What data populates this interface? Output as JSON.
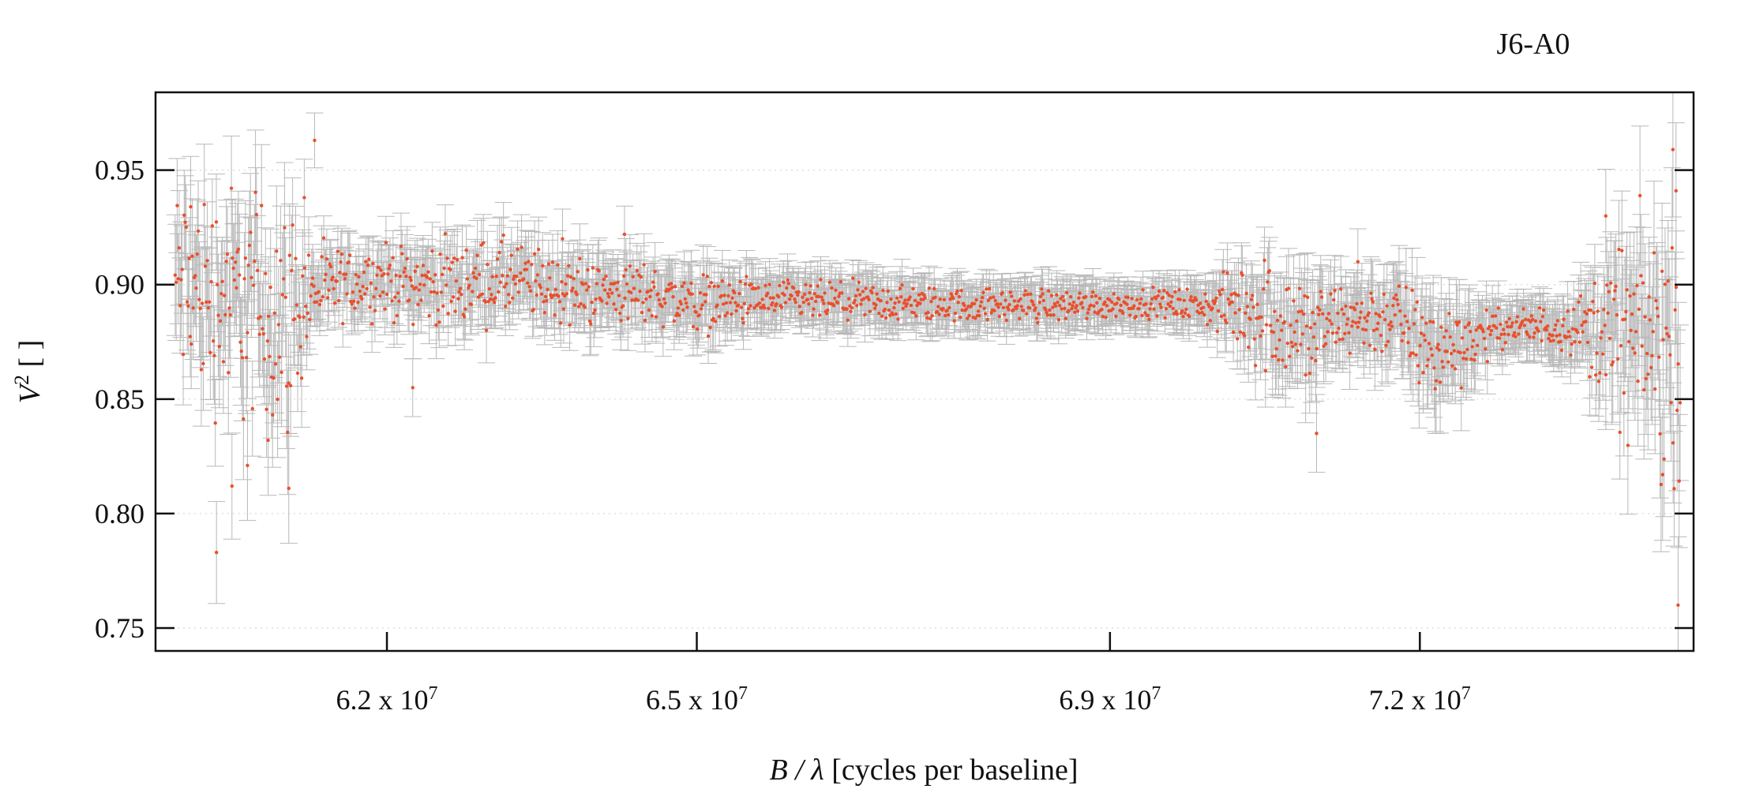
{
  "chart_data": {
    "type": "scatter",
    "title": "J6-A0",
    "xlabel": {
      "var": "B / λ",
      "rest": " [cycles per baseline]"
    },
    "ylabel": {
      "base": "V",
      "sup": "2",
      "rest": " [ ]"
    },
    "x_tick_values": [
      62000000,
      65000000,
      69000000,
      72000000
    ],
    "x_tick_labels": [
      {
        "mant": "6.2 x 10",
        "exp": "7"
      },
      {
        "mant": "6.5 x 10",
        "exp": "7"
      },
      {
        "mant": "6.9 x 10",
        "exp": "7"
      },
      {
        "mant": "7.2 x 10",
        "exp": "7"
      }
    ],
    "y_ticks": [
      0.75,
      0.8,
      0.85,
      0.9,
      0.95
    ],
    "y_tick_labels": [
      "0.75",
      "0.80",
      "0.85",
      "0.90",
      "0.95"
    ],
    "xlim": [
      59760000,
      74650000
    ],
    "ylim": [
      0.74,
      0.984
    ],
    "grid": "horizontal-dotted",
    "point_color": "#e8502e",
    "errorbar_color": "#b8b8b8",
    "series": [
      {
        "x_start": 59950000,
        "x_end": 74520000,
        "profile": [
          [
            59950000,
            0.9,
            0.032,
            0.022
          ],
          [
            60300000,
            0.895,
            0.034,
            0.022
          ],
          [
            60650000,
            0.892,
            0.036,
            0.024
          ],
          [
            61050000,
            0.885,
            0.035,
            0.024
          ],
          [
            61300000,
            0.897,
            0.012,
            0.012
          ],
          [
            61800000,
            0.902,
            0.01,
            0.012
          ],
          [
            62500000,
            0.9,
            0.012,
            0.013
          ],
          [
            63200000,
            0.902,
            0.012,
            0.013
          ],
          [
            63800000,
            0.897,
            0.01,
            0.013
          ],
          [
            64500000,
            0.896,
            0.009,
            0.012
          ],
          [
            65000000,
            0.892,
            0.009,
            0.012
          ],
          [
            65800000,
            0.893,
            0.006,
            0.01
          ],
          [
            66700000,
            0.892,
            0.006,
            0.01
          ],
          [
            67500000,
            0.891,
            0.005,
            0.009
          ],
          [
            68500000,
            0.891,
            0.005,
            0.009
          ],
          [
            69500000,
            0.892,
            0.004,
            0.008
          ],
          [
            70000000,
            0.89,
            0.006,
            0.01
          ],
          [
            70400000,
            0.89,
            0.018,
            0.016
          ],
          [
            70900000,
            0.878,
            0.018,
            0.018
          ],
          [
            71300000,
            0.885,
            0.01,
            0.014
          ],
          [
            71800000,
            0.885,
            0.012,
            0.016
          ],
          [
            72100000,
            0.87,
            0.016,
            0.02
          ],
          [
            72800000,
            0.881,
            0.005,
            0.01
          ],
          [
            73500000,
            0.882,
            0.008,
            0.012
          ],
          [
            74000000,
            0.878,
            0.03,
            0.026
          ],
          [
            74520000,
            0.87,
            0.04,
            0.03
          ]
        ],
        "sample_points": [
          {
            "x": 60100000,
            "y": 0.934
          },
          {
            "x": 60350000,
            "y": 0.783
          },
          {
            "x": 60500000,
            "y": 0.812
          },
          {
            "x": 60650000,
            "y": 0.821
          },
          {
            "x": 60850000,
            "y": 0.832
          },
          {
            "x": 61050000,
            "y": 0.811
          },
          {
            "x": 61200000,
            "y": 0.938
          },
          {
            "x": 61300000,
            "y": 0.963
          },
          {
            "x": 63700000,
            "y": 0.92
          },
          {
            "x": 64300000,
            "y": 0.922
          },
          {
            "x": 62250000,
            "y": 0.855
          },
          {
            "x": 71000000,
            "y": 0.835
          },
          {
            "x": 71400000,
            "y": 0.91
          },
          {
            "x": 73800000,
            "y": 0.93
          },
          {
            "x": 74450000,
            "y": 0.959
          },
          {
            "x": 74480000,
            "y": 0.941
          },
          {
            "x": 74500000,
            "y": 0.76
          },
          {
            "x": 74350000,
            "y": 0.817
          }
        ]
      }
    ]
  }
}
